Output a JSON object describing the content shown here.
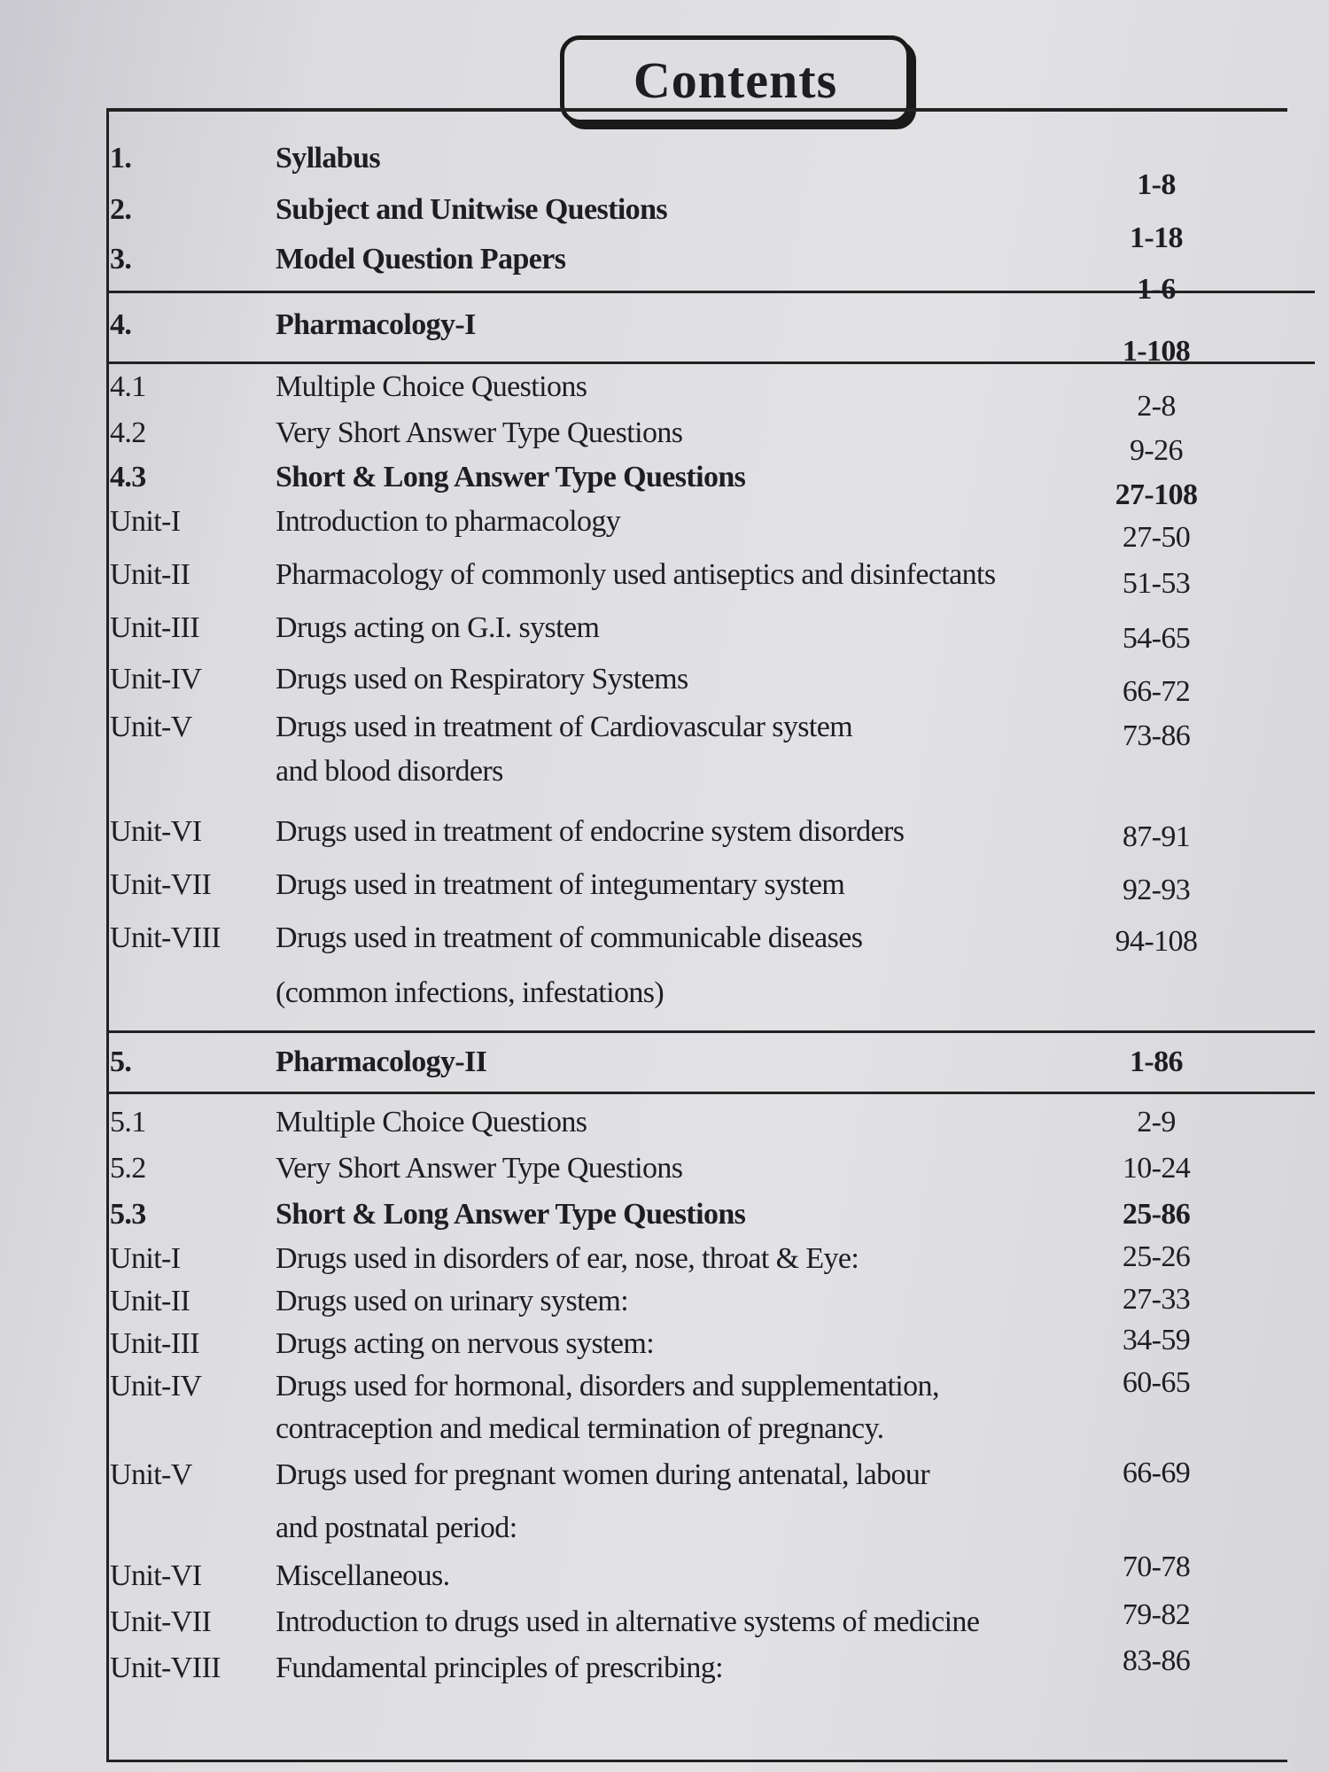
{
  "page_title": "Contents",
  "rows": [
    {
      "num": "1.",
      "title": "Syllabus",
      "pages": "1-8",
      "bold": true
    },
    {
      "num": "2.",
      "title": "Subject and Unitwise Questions",
      "pages": "1-18",
      "bold": true
    },
    {
      "num": "3.",
      "title": "Model Question Papers",
      "pages": "1-6",
      "bold": true
    },
    {
      "num": "4.",
      "title": "Pharmacology-I",
      "pages": "1-108",
      "bold": true
    },
    {
      "num": "4.1",
      "title": "Multiple Choice Questions",
      "pages": "2-8"
    },
    {
      "num": "4.2",
      "title": "Very Short Answer Type Questions",
      "pages": "9-26"
    },
    {
      "num": "4.3",
      "title": "Short & Long Answer Type Questions",
      "pages": "27-108",
      "bold": true
    },
    {
      "num": "Unit-I",
      "title": "Introduction to pharmacology",
      "pages": "27-50"
    },
    {
      "num": "Unit-II",
      "title": "Pharmacology of commonly used antiseptics and disinfectants",
      "pages": "51-53"
    },
    {
      "num": "Unit-III",
      "title": "Drugs acting on G.I. system",
      "pages": "54-65"
    },
    {
      "num": "Unit-IV",
      "title": "Drugs used on Respiratory Systems",
      "pages": "66-72"
    },
    {
      "num": "Unit-V",
      "title": "Drugs used in treatment of Cardiovascular system",
      "title2": "and blood  disorders",
      "pages": "73-86"
    },
    {
      "num": "Unit-VI",
      "title": "Drugs used in treatment of endocrine system disorders",
      "pages": "87-91"
    },
    {
      "num": "Unit-VII",
      "title": "Drugs used in treatment of  integumentary system",
      "pages": "92-93"
    },
    {
      "num": "Unit-VIII",
      "title": "Drugs used in treatment of communicable diseases",
      "title2": "(common  infections, infestations)",
      "pages": "94-108"
    },
    {
      "num": "5.",
      "title": "Pharmacology-II",
      "pages": "1-86",
      "bold": true
    },
    {
      "num": "5.1",
      "title": "Multiple Choice Questions",
      "pages": "2-9"
    },
    {
      "num": "5.2",
      "title": "Very Short Answer Type Questions",
      "pages": "10-24"
    },
    {
      "num": "5.3",
      "title": "Short & Long Answer Type Questions",
      "pages": "25-86",
      "bold": true
    },
    {
      "num": "Unit-I",
      "title": "Drugs used in disorders of ear, nose,  throat & Eye:",
      "pages": "25-26"
    },
    {
      "num": "Unit-II",
      "title": "Drugs used on urinary system:",
      "pages": "27-33"
    },
    {
      "num": "Unit-III",
      "title": "Drugs acting on nervous system:",
      "pages": "34-59"
    },
    {
      "num": "Unit-IV",
      "title": "Drugs used for hormonal, disorders  and supplementation,",
      "title2": "contraception  and medical termination of pregnancy.",
      "pages": "60-65"
    },
    {
      "num": "Unit-V",
      "title": "Drugs used for pregnant women during antenatal, labour",
      "title2": "and postnatal period:",
      "pages": "66-69"
    },
    {
      "num": "Unit-VI",
      "title": "Miscellaneous.",
      "pages": "70-78"
    },
    {
      "num": "Unit-VII",
      "title": "Introduction to drugs used in alternative systems of medicine",
      "pages": "79-82"
    },
    {
      "num": "Unit-VIII",
      "title": "Fundamental principles of prescribing:",
      "pages": "83-86"
    }
  ]
}
